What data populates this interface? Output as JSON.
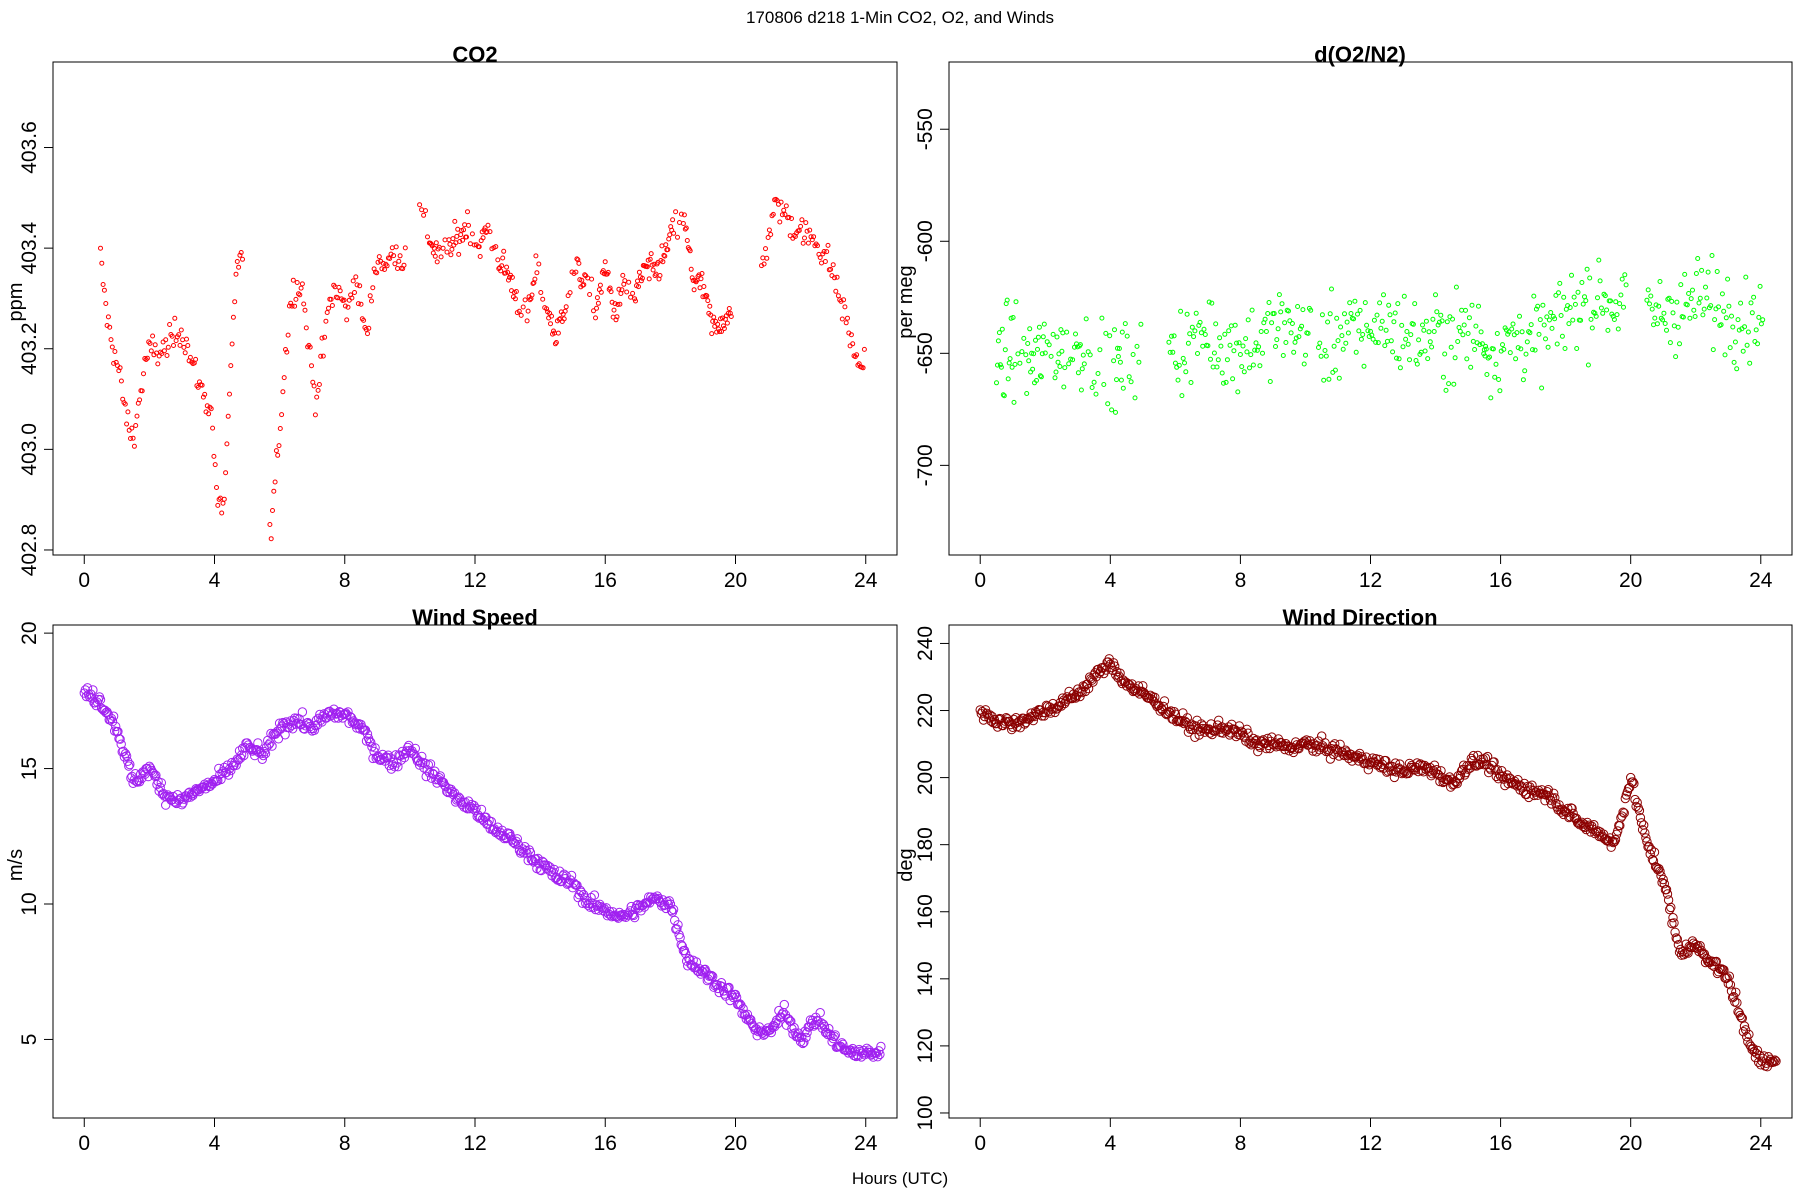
{
  "figure": {
    "title": "170806   d218   1-Min CO2, O2, and Winds",
    "xlabel": "Hours (UTC)"
  },
  "chart_data": [
    {
      "type": "scatter",
      "title": "CO2",
      "xlabel": "",
      "ylabel": "ppm",
      "xlim": [
        -0.96,
        24.96
      ],
      "ylim": [
        402.79,
        403.77
      ],
      "xticks": [
        0,
        4,
        8,
        12,
        16,
        20,
        24
      ],
      "yticks": [
        402.8,
        403.0,
        403.2,
        403.4,
        403.6
      ],
      "ytick_labels": [
        "402.8",
        "403.0",
        "403.2",
        "403.4",
        "403.6"
      ],
      "grid": false,
      "marker_color": "#ff0000",
      "segments": [
        {
          "t": [
            0.5,
            0.7,
            0.9,
            1.1,
            1.3,
            1.5,
            1.7,
            1.9,
            2.1,
            2.3,
            2.5,
            2.7,
            2.9,
            3.1,
            3.3,
            3.5,
            3.7,
            3.9,
            4.1,
            4.3,
            4.5,
            4.7
          ],
          "y": [
            403.38,
            403.26,
            403.2,
            403.14,
            403.06,
            403.02,
            403.1,
            403.18,
            403.2,
            403.19,
            403.2,
            403.22,
            403.24,
            403.22,
            403.17,
            403.14,
            403.1,
            403.08,
            402.88,
            402.9,
            403.15,
            403.38
          ]
        },
        {
          "t": [
            5.7,
            5.9,
            6.1,
            6.3,
            6.5,
            6.7,
            6.9,
            7.1,
            7.3,
            7.5,
            7.7,
            7.9,
            8.1,
            8.3,
            8.5,
            8.7,
            8.9,
            9.1,
            9.3,
            9.5,
            9.7
          ],
          "y": [
            402.82,
            402.96,
            403.12,
            403.28,
            403.33,
            403.32,
            403.2,
            403.1,
            403.18,
            403.28,
            403.32,
            403.3,
            403.27,
            403.35,
            403.28,
            403.22,
            403.36,
            403.38,
            403.36,
            403.4,
            403.38
          ]
        },
        {
          "t": [
            10.3,
            10.6,
            10.9,
            11.2,
            11.5,
            11.8,
            12.1,
            12.4,
            12.7,
            13.0,
            13.3,
            13.6,
            13.9,
            14.2,
            14.5,
            14.8,
            15.1,
            15.4,
            15.7,
            16.0,
            16.3,
            16.6,
            16.9,
            17.2,
            17.5,
            17.8,
            18.1,
            18.4,
            18.7,
            19.0,
            19.3,
            19.6
          ],
          "y": [
            403.48,
            403.42,
            403.38,
            403.4,
            403.42,
            403.45,
            403.4,
            403.44,
            403.38,
            403.35,
            403.3,
            403.26,
            403.36,
            403.28,
            403.22,
            403.3,
            403.36,
            403.33,
            403.28,
            403.36,
            403.27,
            403.33,
            403.3,
            403.36,
            403.35,
            403.38,
            403.44,
            403.46,
            403.34,
            403.32,
            403.24,
            403.26
          ]
        },
        {
          "t": [
            20.8,
            21.0,
            21.2,
            21.4,
            21.6,
            21.8,
            22.0,
            22.2,
            22.4,
            22.6,
            22.8,
            23.0,
            23.2,
            23.4,
            23.6,
            23.8
          ],
          "y": [
            403.36,
            403.42,
            403.48,
            403.48,
            403.46,
            403.44,
            403.44,
            403.42,
            403.42,
            403.4,
            403.38,
            403.35,
            403.3,
            403.26,
            403.2,
            403.17
          ]
        }
      ]
    },
    {
      "type": "scatter",
      "title": "d(O2/N2)",
      "xlabel": "",
      "ylabel": "per meg",
      "xlim": [
        -0.96,
        24.96
      ],
      "ylim": [
        -740,
        -520
      ],
      "xticks": [
        0,
        4,
        8,
        12,
        16,
        20,
        24
      ],
      "yticks": [
        -700,
        -650,
        -600,
        -550
      ],
      "ytick_labels": [
        "-700",
        "-650",
        "-600",
        "-550"
      ],
      "grid": false,
      "marker_color": "#00ff00",
      "segments": [
        {
          "t": [
            0.5,
            0.8,
            1.1,
            1.4,
            1.7,
            2.0,
            2.3,
            2.6,
            2.9,
            3.2,
            3.5,
            3.8,
            4.1,
            4.4,
            4.7
          ],
          "y": [
            -655,
            -650,
            -648,
            -652,
            -655,
            -650,
            -646,
            -650,
            -648,
            -646,
            -650,
            -655,
            -658,
            -655,
            -650
          ]
        },
        {
          "t": [
            5.8,
            6.2,
            6.6,
            7.0,
            7.4,
            7.8,
            8.2,
            8.6,
            9.0,
            9.4,
            9.8
          ],
          "y": [
            -650,
            -648,
            -645,
            -640,
            -646,
            -648,
            -646,
            -645,
            -640,
            -638,
            -640
          ]
        },
        {
          "t": [
            10.4,
            10.8,
            11.2,
            11.6,
            12.0,
            12.4,
            12.8,
            13.2,
            13.6,
            14.0,
            14.4,
            14.8,
            15.2
          ],
          "y": [
            -648,
            -645,
            -640,
            -642,
            -638,
            -636,
            -640,
            -642,
            -645,
            -640,
            -645,
            -640,
            -642
          ]
        },
        {
          "t": [
            15.5,
            15.9,
            16.3,
            16.7,
            17.1,
            17.5,
            17.9,
            18.3,
            18.7,
            19.1,
            19.5
          ],
          "y": [
            -650,
            -648,
            -645,
            -642,
            -645,
            -640,
            -635,
            -628,
            -626,
            -625,
            -628
          ]
        },
        {
          "t": [
            20.5,
            20.9,
            21.3,
            21.7,
            22.1,
            22.5,
            22.9,
            23.3,
            23.7
          ],
          "y": [
            -632,
            -633,
            -630,
            -630,
            -625,
            -628,
            -630,
            -632,
            -634
          ]
        }
      ]
    },
    {
      "type": "scatter",
      "title": "Wind Speed",
      "xlabel": "",
      "ylabel": "m/s",
      "xlim": [
        -0.96,
        24.96
      ],
      "ylim": [
        2.1,
        20.3
      ],
      "xticks": [
        0,
        4,
        8,
        12,
        16,
        20,
        24
      ],
      "yticks": [
        5,
        10,
        15,
        20
      ],
      "ytick_labels": [
        "5",
        "10",
        "15",
        "20"
      ],
      "grid": false,
      "marker_color": "#a020f0",
      "segments": [
        {
          "t": [
            0.0,
            0.5,
            1.0,
            1.5,
            2.0,
            2.5,
            3.0,
            3.5,
            4.0,
            4.5,
            5.0,
            5.5,
            6.0,
            6.5,
            7.0,
            7.5,
            8.0,
            8.5,
            9.0,
            9.5,
            10.0,
            10.5,
            11.0,
            11.5,
            12.0,
            12.5,
            13.0,
            13.5,
            14.0,
            14.5,
            15.0,
            15.5,
            16.0,
            16.5,
            17.0,
            17.5,
            18.0,
            18.5,
            19.0,
            19.5,
            20.0,
            20.5,
            21.0,
            21.5,
            22.0,
            22.5,
            23.0,
            23.5,
            24.0
          ],
          "y": [
            17.8,
            17.5,
            16.5,
            14.5,
            15.0,
            14.0,
            13.8,
            14.2,
            14.5,
            15.0,
            15.8,
            15.5,
            16.5,
            16.8,
            16.5,
            17.0,
            17.0,
            16.5,
            15.5,
            15.2,
            15.8,
            15.0,
            14.5,
            13.8,
            13.5,
            12.8,
            12.5,
            12.0,
            11.5,
            11.0,
            10.8,
            10.0,
            9.8,
            9.5,
            9.8,
            10.2,
            10.0,
            8.0,
            7.5,
            7.0,
            6.5,
            5.5,
            5.2,
            6.0,
            5.0,
            5.8,
            5.0,
            4.5,
            4.5
          ]
        }
      ]
    },
    {
      "type": "scatter",
      "title": "Wind Direction",
      "xlabel": "",
      "ylabel": "deg",
      "xlim": [
        -0.96,
        24.96
      ],
      "ylim": [
        98.5,
        245.5
      ],
      "xticks": [
        0,
        4,
        8,
        12,
        16,
        20,
        24
      ],
      "yticks": [
        100,
        120,
        140,
        160,
        180,
        200,
        220,
        240
      ],
      "ytick_labels": [
        "100",
        "120",
        "140",
        "160",
        "180",
        "200",
        "220",
        "240"
      ],
      "grid": false,
      "marker_color": "#8b0000",
      "segments": [
        {
          "t": [
            0.0,
            0.5,
            1.0,
            1.5,
            2.0,
            2.5,
            3.0,
            3.5,
            4.0,
            4.5,
            5.0,
            5.5,
            6.0,
            6.5,
            7.0,
            7.5,
            8.0,
            8.5,
            9.0,
            9.5,
            10.0,
            10.5,
            11.0,
            11.5,
            12.0,
            12.5,
            13.0,
            13.5,
            14.0,
            14.5,
            15.0,
            15.5,
            16.0,
            16.5,
            17.0,
            17.5,
            18.0,
            18.5,
            19.0,
            19.5,
            20.0,
            20.5,
            21.0,
            21.5,
            22.0,
            22.5,
            23.0,
            23.5,
            24.0
          ],
          "y": [
            220,
            217,
            216,
            218,
            220,
            222,
            225,
            230,
            234,
            228,
            225,
            222,
            218,
            215,
            214,
            215,
            213,
            210,
            210,
            209,
            210,
            209,
            208,
            206,
            205,
            203,
            202,
            203,
            202,
            198,
            204,
            205,
            200,
            198,
            196,
            195,
            190,
            186,
            184,
            180,
            200,
            180,
            170,
            148,
            150,
            145,
            140,
            125,
            115
          ]
        }
      ]
    }
  ]
}
